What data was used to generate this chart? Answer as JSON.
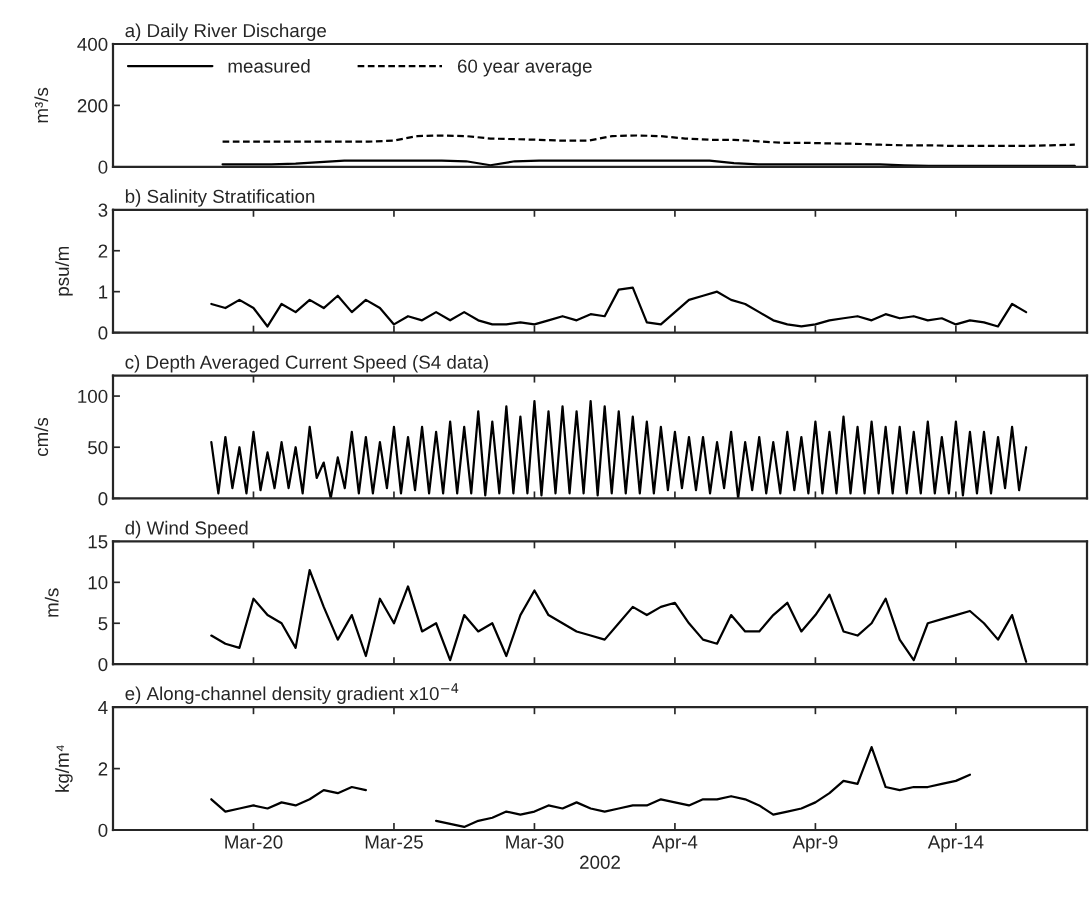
{
  "chart_data": [
    {
      "type": "line",
      "title": "a) Daily River Discharge",
      "ylabel": "m³/s",
      "categories": [
        null,
        null,
        null,
        null,
        null,
        null,
        null,
        null,
        null,
        null,
        null,
        null,
        null,
        null,
        null,
        null,
        null,
        null,
        null,
        null,
        null,
        null,
        null,
        null,
        null,
        null,
        null,
        null,
        null,
        null,
        null,
        null,
        null,
        null,
        null,
        null,
        null,
        null,
        null,
        null
      ],
      "series": [
        {
          "name": "measured",
          "color": "#000000",
          "line_style": "solid",
          "values": [
            null,
            null,
            null,
            null,
            8,
            8,
            8,
            10,
            15,
            20,
            20,
            20,
            20,
            20,
            18,
            5,
            18,
            20,
            20,
            20,
            20,
            20,
            20,
            20,
            20,
            12,
            8,
            8,
            8,
            8,
            8,
            8,
            5,
            3,
            3,
            3,
            3,
            3,
            3,
            3
          ]
        },
        {
          "name": "60 year average",
          "color": "#000000",
          "line_style": "dashed",
          "values": [
            null,
            null,
            null,
            null,
            82,
            82,
            82,
            82,
            82,
            82,
            82,
            85,
            100,
            102,
            100,
            92,
            90,
            88,
            85,
            85,
            100,
            102,
            100,
            92,
            88,
            88,
            83,
            78,
            78,
            76,
            75,
            72,
            70,
            70,
            68,
            68,
            68,
            68,
            70,
            72
          ]
        }
      ],
      "ylim": [
        0,
        400
      ],
      "yticks": [
        0,
        200,
        400
      ],
      "tick_labels": "y",
      "legend": "top left"
    },
    {
      "type": "line",
      "title": "b) Salinity Stratification",
      "ylabel": "psu/m",
      "x": [
        "2002-03-18T12:00",
        "2002-03-19T00:00",
        "2002-03-19T12:00",
        "2002-03-20T00:00",
        "2002-03-20T12:00",
        "2002-03-21T00:00",
        "2002-03-21T12:00",
        "2002-03-22T00:00",
        "2002-03-22T12:00",
        "2002-03-23T00:00",
        "2002-03-23T12:00",
        "2002-03-24T00:00",
        "2002-03-24T12:00",
        "2002-03-25T00:00",
        "2002-03-25T12:00",
        "2002-03-26T00:00",
        "2002-03-26T12:00",
        "2002-03-27T00:00",
        "2002-03-27T12:00",
        "2002-03-28T00:00",
        "2002-03-28T12:00",
        "2002-03-29T00:00",
        "2002-03-29T12:00",
        "2002-03-30T00:00",
        "2002-03-30T12:00",
        "2002-03-31T00:00",
        "2002-03-31T12:00",
        "2002-04-01T00:00",
        "2002-04-01T12:00",
        "2002-04-02T00:00",
        "2002-04-02T12:00",
        "2002-04-03T00:00",
        "2002-04-03T12:00",
        "2002-04-04T00:00",
        "2002-04-04T12:00",
        "2002-04-05T00:00",
        "2002-04-05T12:00",
        "2002-04-06T00:00",
        "2002-04-06T12:00",
        "2002-04-07T00:00",
        "2002-04-07T12:00",
        "2002-04-08T00:00",
        "2002-04-08T12:00",
        "2002-04-09T00:00",
        "2002-04-09T12:00",
        "2002-04-10T00:00",
        "2002-04-10T12:00",
        "2002-04-11T00:00",
        "2002-04-11T12:00",
        "2002-04-12T00:00",
        "2002-04-12T12:00",
        "2002-04-13T00:00",
        "2002-04-13T12:00",
        "2002-04-14T00:00",
        "2002-04-14T12:00",
        "2002-04-15T00:00",
        "2002-04-15T12:00",
        "2002-04-16T00:00",
        "2002-04-16T12:00"
      ],
      "series": [
        {
          "color": "#000000",
          "values": [
            0.7,
            0.6,
            0.8,
            0.6,
            0.15,
            0.7,
            0.5,
            0.8,
            0.6,
            0.9,
            0.5,
            0.8,
            0.6,
            0.2,
            0.4,
            0.3,
            0.5,
            0.3,
            0.5,
            0.3,
            0.2,
            0.2,
            0.25,
            0.2,
            0.3,
            0.4,
            0.3,
            0.45,
            0.4,
            1.05,
            1.1,
            0.25,
            0.2,
            0.5,
            0.8,
            0.9,
            1.0,
            0.8,
            0.7,
            0.5,
            0.3,
            0.2,
            0.15,
            0.2,
            0.3,
            0.35,
            0.4,
            0.3,
            0.45,
            0.35,
            0.4,
            0.3,
            0.35,
            0.2,
            0.3,
            0.25,
            0.15,
            0.7,
            0.5
          ]
        }
      ],
      "xlim": [
        "2002-03-15",
        "2002-04-18T16:00"
      ],
      "xticks": [
        {
          "value": "2002-03-20",
          "label": null
        },
        {
          "value": "2002-03-25",
          "label": null
        },
        {
          "value": "2002-03-30",
          "label": null
        },
        {
          "value": "2002-04-04",
          "label": null
        },
        {
          "value": "2002-04-09",
          "label": null
        },
        {
          "value": "2002-04-14",
          "label": null
        }
      ],
      "ylim": [
        0,
        3
      ],
      "yticks": [
        0,
        1,
        2,
        3
      ],
      "tick_labels": "y"
    },
    {
      "type": "line",
      "title": "c) Depth Averaged Current Speed (S4 data)",
      "ylabel": "cm/s",
      "x": [
        "2002-03-18T12:00",
        "2002-03-18T18:00",
        "2002-03-19T00:00",
        "2002-03-19T06:00",
        "2002-03-19T12:00",
        "2002-03-19T18:00",
        "2002-03-20T00:00",
        "2002-03-20T06:00",
        "2002-03-20T12:00",
        "2002-03-20T18:00",
        "2002-03-21T00:00",
        "2002-03-21T06:00",
        "2002-03-21T12:00",
        "2002-03-21T18:00",
        "2002-03-22T00:00",
        "2002-03-22T06:00",
        "2002-03-22T12:00",
        "2002-03-22T18:00",
        "2002-03-23T00:00",
        "2002-03-23T06:00",
        "2002-03-23T12:00",
        "2002-03-23T18:00",
        "2002-03-24T00:00",
        "2002-03-24T06:00",
        "2002-03-24T12:00",
        "2002-03-24T18:00",
        "2002-03-25T00:00",
        "2002-03-25T06:00",
        "2002-03-25T12:00",
        "2002-03-25T18:00",
        "2002-03-26T00:00",
        "2002-03-26T06:00",
        "2002-03-26T12:00",
        "2002-03-26T18:00",
        "2002-03-27T00:00",
        "2002-03-27T06:00",
        "2002-03-27T12:00",
        "2002-03-27T18:00",
        "2002-03-28T00:00",
        "2002-03-28T06:00",
        "2002-03-28T12:00",
        "2002-03-28T18:00",
        "2002-03-29T00:00",
        "2002-03-29T06:00",
        "2002-03-29T12:00",
        "2002-03-29T18:00",
        "2002-03-30T00:00",
        "2002-03-30T06:00",
        "2002-03-30T12:00",
        "2002-03-30T18:00",
        "2002-03-31T00:00",
        "2002-03-31T06:00",
        "2002-03-31T12:00",
        "2002-03-31T18:00",
        "2002-04-01T00:00",
        "2002-04-01T06:00",
        "2002-04-01T12:00",
        "2002-04-01T18:00",
        "2002-04-02T00:00",
        "2002-04-02T06:00",
        "2002-04-02T12:00",
        "2002-04-02T18:00",
        "2002-04-03T00:00",
        "2002-04-03T06:00",
        "2002-04-03T12:00",
        "2002-04-03T18:00",
        "2002-04-04T00:00",
        "2002-04-04T06:00",
        "2002-04-04T12:00",
        "2002-04-04T18:00",
        "2002-04-05T00:00",
        "2002-04-05T06:00",
        "2002-04-05T12:00",
        "2002-04-05T18:00",
        "2002-04-06T00:00",
        "2002-04-06T06:00",
        "2002-04-06T12:00",
        "2002-04-06T18:00",
        "2002-04-07T00:00",
        "2002-04-07T06:00",
        "2002-04-07T12:00",
        "2002-04-07T18:00",
        "2002-04-08T00:00",
        "2002-04-08T06:00",
        "2002-04-08T12:00",
        "2002-04-08T18:00",
        "2002-04-09T00:00",
        "2002-04-09T06:00",
        "2002-04-09T12:00",
        "2002-04-09T18:00",
        "2002-04-10T00:00",
        "2002-04-10T06:00",
        "2002-04-10T12:00",
        "2002-04-10T18:00",
        "2002-04-11T00:00",
        "2002-04-11T06:00",
        "2002-04-11T12:00",
        "2002-04-11T18:00",
        "2002-04-12T00:00",
        "2002-04-12T06:00",
        "2002-04-12T12:00",
        "2002-04-12T18:00",
        "2002-04-13T00:00",
        "2002-04-13T06:00",
        "2002-04-13T12:00",
        "2002-04-13T18:00",
        "2002-04-14T00:00",
        "2002-04-14T06:00",
        "2002-04-14T12:00",
        "2002-04-14T18:00",
        "2002-04-15T00:00",
        "2002-04-15T06:00",
        "2002-04-15T12:00",
        "2002-04-15T18:00",
        "2002-04-16T00:00",
        "2002-04-16T06:00",
        "2002-04-16T12:00"
      ],
      "series": [
        {
          "color": "#000000",
          "values": [
            55,
            5,
            60,
            10,
            50,
            5,
            65,
            8,
            45,
            10,
            55,
            10,
            50,
            5,
            70,
            20,
            35,
            0,
            40,
            10,
            65,
            5,
            60,
            5,
            55,
            10,
            70,
            5,
            60,
            8,
            70,
            5,
            65,
            5,
            75,
            5,
            70,
            5,
            85,
            3,
            75,
            5,
            90,
            5,
            80,
            5,
            95,
            3,
            85,
            5,
            90,
            5,
            85,
            5,
            95,
            3,
            90,
            5,
            85,
            5,
            80,
            5,
            75,
            5,
            70,
            8,
            65,
            10,
            60,
            8,
            60,
            5,
            55,
            10,
            65,
            0,
            55,
            8,
            60,
            5,
            55,
            5,
            65,
            8,
            60,
            5,
            75,
            5,
            65,
            5,
            80,
            5,
            70,
            5,
            75,
            5,
            70,
            5,
            70,
            5,
            65,
            5,
            75,
            5,
            60,
            5,
            75,
            3,
            65,
            5,
            65,
            5,
            60,
            10,
            70,
            8,
            50
          ]
        }
      ],
      "xlim": [
        "2002-03-15",
        "2002-04-18T16:00"
      ],
      "xticks": [
        {
          "value": "2002-03-20",
          "label": null
        },
        {
          "value": "2002-03-25",
          "label": null
        },
        {
          "value": "2002-03-30",
          "label": null
        },
        {
          "value": "2002-04-04",
          "label": null
        },
        {
          "value": "2002-04-09",
          "label": null
        },
        {
          "value": "2002-04-14",
          "label": null
        }
      ],
      "ylim": [
        0,
        120
      ],
      "yticks": [
        0,
        50,
        100
      ],
      "tick_labels": "y"
    },
    {
      "type": "line",
      "title": "d) Wind Speed",
      "ylabel": "m/s",
      "x": [
        "2002-03-18T12:00",
        "2002-03-19T00:00",
        "2002-03-19T12:00",
        "2002-03-20T00:00",
        "2002-03-20T12:00",
        "2002-03-21T00:00",
        "2002-03-21T12:00",
        "2002-03-22T00:00",
        "2002-03-22T12:00",
        "2002-03-23T00:00",
        "2002-03-23T12:00",
        "2002-03-24T00:00",
        "2002-03-24T12:00",
        "2002-03-25T00:00",
        "2002-03-25T12:00",
        "2002-03-26T00:00",
        "2002-03-26T12:00",
        "2002-03-27T00:00",
        "2002-03-27T12:00",
        "2002-03-28T00:00",
        "2002-03-28T12:00",
        "2002-03-29T00:00",
        "2002-03-29T12:00",
        "2002-03-30T00:00",
        "2002-03-30T12:00",
        "2002-03-31T00:00",
        "2002-03-31T12:00",
        "2002-04-01T00:00",
        "2002-04-01T12:00",
        "2002-04-02T00:00",
        "2002-04-02T12:00",
        "2002-04-03T00:00",
        "2002-04-03T12:00",
        "2002-04-04T00:00",
        "2002-04-04T12:00",
        "2002-04-05T00:00",
        "2002-04-05T12:00",
        "2002-04-06T00:00",
        "2002-04-06T12:00",
        "2002-04-07T00:00",
        "2002-04-07T12:00",
        "2002-04-08T00:00",
        "2002-04-08T12:00",
        "2002-04-09T00:00",
        "2002-04-09T12:00",
        "2002-04-10T00:00",
        "2002-04-10T12:00",
        "2002-04-11T00:00",
        "2002-04-11T12:00",
        "2002-04-12T00:00",
        "2002-04-12T12:00",
        "2002-04-13T00:00",
        "2002-04-13T12:00",
        "2002-04-14T00:00",
        "2002-04-14T12:00",
        "2002-04-15T00:00",
        "2002-04-15T12:00",
        "2002-04-16T00:00",
        "2002-04-16T12:00"
      ],
      "series": [
        {
          "color": "#000000",
          "values": [
            3.5,
            2.5,
            2,
            8,
            6,
            5,
            2,
            11.5,
            7,
            3,
            6,
            1,
            8,
            5,
            9.5,
            4,
            5,
            0.5,
            6,
            4,
            5,
            1,
            6,
            9,
            6,
            5,
            4,
            3.5,
            3,
            5,
            7,
            6,
            7,
            7.5,
            5,
            3,
            2.5,
            6,
            4,
            4,
            6,
            7.5,
            4,
            6,
            8.5,
            4,
            3.5,
            5,
            8,
            3,
            0.5,
            5,
            5.5,
            6,
            6.5,
            5,
            3,
            6,
            0.3
          ]
        }
      ],
      "xlim": [
        "2002-03-15",
        "2002-04-18T16:00"
      ],
      "xticks": [
        {
          "value": "2002-03-20",
          "label": null
        },
        {
          "value": "2002-03-25",
          "label": null
        },
        {
          "value": "2002-03-30",
          "label": null
        },
        {
          "value": "2002-04-04",
          "label": null
        },
        {
          "value": "2002-04-09",
          "label": null
        },
        {
          "value": "2002-04-14",
          "label": null
        }
      ],
      "ylim": [
        0,
        15
      ],
      "yticks": [
        0,
        5,
        10,
        15
      ],
      "tick_labels": "y"
    },
    {
      "type": "line",
      "title": "e) Along-channel density gradient x10$^{−4}$",
      "ylabel": "kg/m⁴",
      "xlabel": "2002",
      "x": [
        "2002-03-18T12:00",
        "2002-03-19T00:00",
        "2002-03-19T12:00",
        "2002-03-20T00:00",
        "2002-03-20T12:00",
        "2002-03-21T00:00",
        "2002-03-21T12:00",
        "2002-03-22T00:00",
        "2002-03-22T12:00",
        "2002-03-23T00:00",
        "2002-03-23T12:00",
        "2002-03-24T00:00",
        "2002-03-25T12:00",
        "2002-03-26T12:00",
        "2002-03-27T00:00",
        "2002-03-27T12:00",
        "2002-03-28T00:00",
        "2002-03-28T12:00",
        "2002-03-29T00:00",
        "2002-03-29T12:00",
        "2002-03-30T00:00",
        "2002-03-30T12:00",
        "2002-03-31T00:00",
        "2002-03-31T12:00",
        "2002-04-01T00:00",
        "2002-04-01T12:00",
        "2002-04-02T00:00",
        "2002-04-02T12:00",
        "2002-04-03T00:00",
        "2002-04-03T12:00",
        "2002-04-04T00:00",
        "2002-04-04T12:00",
        "2002-04-05T00:00",
        "2002-04-05T12:00",
        "2002-04-06T00:00",
        "2002-04-06T12:00",
        "2002-04-07T00:00",
        "2002-04-07T12:00",
        "2002-04-08T00:00",
        "2002-04-08T12:00",
        "2002-04-09T00:00",
        "2002-04-09T12:00",
        "2002-04-10T00:00",
        "2002-04-10T12:00",
        "2002-04-11T00:00",
        "2002-04-11T12:00",
        "2002-04-12T00:00",
        "2002-04-12T12:00",
        "2002-04-13T00:00",
        "2002-04-13T12:00",
        "2002-04-14T00:00",
        "2002-04-14T12:00"
      ],
      "series": [
        {
          "color": "#000000",
          "values": [
            1.0,
            0.6,
            0.7,
            0.8,
            0.7,
            0.9,
            0.8,
            1.0,
            1.3,
            1.2,
            1.4,
            1.3,
            null,
            0.3,
            0.2,
            0.1,
            0.3,
            0.4,
            0.6,
            0.5,
            0.6,
            0.8,
            0.7,
            0.9,
            0.7,
            0.6,
            0.7,
            0.8,
            0.8,
            1.0,
            0.9,
            0.8,
            1.0,
            1.0,
            1.1,
            1.0,
            0.8,
            0.5,
            0.6,
            0.7,
            0.9,
            1.2,
            1.6,
            1.5,
            2.7,
            1.4,
            1.3,
            1.4,
            1.4,
            1.5,
            1.6,
            1.8
          ]
        }
      ],
      "xlim": [
        "2002-03-15",
        "2002-04-18T16:00"
      ],
      "xticks": [
        {
          "value": "2002-03-20",
          "label": "Mar-20"
        },
        {
          "value": "2002-03-25",
          "label": "Mar-25"
        },
        {
          "value": "2002-03-30",
          "label": "Mar-30"
        },
        {
          "value": "2002-04-04",
          "label": "Apr-4"
        },
        {
          "value": "2002-04-09",
          "label": "Apr-9"
        },
        {
          "value": "2002-04-14",
          "label": "Apr-14"
        }
      ],
      "ylim": [
        0,
        4
      ],
      "yticks": [
        0,
        2,
        4
      ]
    }
  ]
}
